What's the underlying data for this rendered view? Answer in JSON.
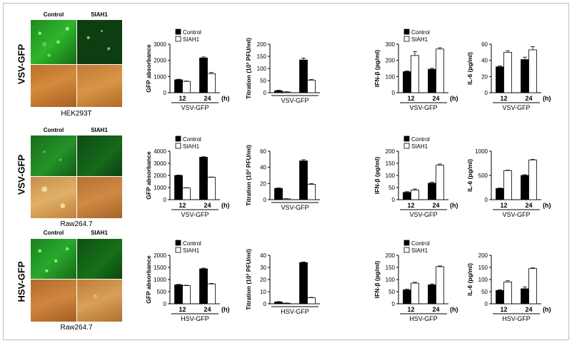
{
  "rows": [
    {
      "virus": "VSV-GFP",
      "cell_line": "HEK293T",
      "micro_labels": [
        "Control",
        "SIAH1"
      ]
    },
    {
      "virus": "VSV-GFP",
      "cell_line": "Raw264.7",
      "micro_labels": [
        "Control",
        "SIAH1"
      ]
    },
    {
      "virus": "HSV-GFP",
      "cell_line": "Raw264.7",
      "micro_labels": [
        "Control",
        "SIAH1"
      ]
    }
  ],
  "colors": {
    "control": "#000000",
    "siah1": "#ffffff",
    "red_accent": "#c0392b",
    "green_fluor": "#36c83c"
  },
  "chart_data": [
    {
      "id": "r1-gfp",
      "type": "bar",
      "legend": [
        "Control",
        "SIAH1"
      ],
      "ylabel": "GFP absorbance",
      "xlabel": "VSV-GFP",
      "categories": [
        "12",
        "24"
      ],
      "unit": "(h)",
      "ylim": [
        0,
        3000
      ],
      "yticks": [
        0,
        1000,
        2000,
        3000
      ],
      "series": [
        {
          "name": "Control",
          "values": [
            800,
            2150
          ],
          "err": [
            30,
            60
          ]
        },
        {
          "name": "SIAH1",
          "values": [
            700,
            1180
          ],
          "err": [
            20,
            70
          ]
        }
      ]
    },
    {
      "id": "r1-tit",
      "type": "bar",
      "legend": [],
      "ylabel": "Titration (10³ PFU/ml)",
      "xlabel": "VSV-GFP",
      "categories": [
        "",
        ""
      ],
      "unit": "",
      "ylim": [
        0,
        200
      ],
      "yticks": [
        0,
        50,
        100,
        150,
        200
      ],
      "series": [
        {
          "name": "Control",
          "values": [
            8,
            135
          ],
          "err": [
            2,
            8
          ]
        },
        {
          "name": "SIAH1",
          "values": [
            3,
            52
          ],
          "err": [
            1,
            3
          ]
        }
      ]
    },
    {
      "id": "r1-ifn",
      "type": "bar",
      "legend": [
        "Control",
        "SIAH1"
      ],
      "ylabel": "IFN-β (pg/ml)",
      "xlabel": "VSV-GFP",
      "categories": [
        "12",
        "24"
      ],
      "unit": "(h)",
      "ylim": [
        0,
        300
      ],
      "yticks": [
        0,
        100,
        200,
        300
      ],
      "series": [
        {
          "name": "Control",
          "values": [
            130,
            145
          ],
          "err": [
            5,
            6
          ]
        },
        {
          "name": "SIAH1",
          "values": [
            230,
            270
          ],
          "err": [
            25,
            8
          ]
        }
      ]
    },
    {
      "id": "r1-il6",
      "type": "bar",
      "legend": [],
      "ylabel": "IL-6 (pg/ml)",
      "xlabel": "VSV-GFP",
      "categories": [
        "12",
        "24"
      ],
      "unit": "(h)",
      "ylim": [
        0,
        60
      ],
      "yticks": [
        0,
        20,
        40,
        60
      ],
      "series": [
        {
          "name": "Control",
          "values": [
            32,
            41
          ],
          "err": [
            1,
            3
          ]
        },
        {
          "name": "SIAH1",
          "values": [
            50,
            53
          ],
          "err": [
            2,
            4
          ]
        }
      ]
    },
    {
      "id": "r2-gfp",
      "type": "bar",
      "legend": [
        "Control",
        "SIAH1"
      ],
      "ylabel": "GFP absorbance",
      "xlabel": "VSV-GFP",
      "categories": [
        "12",
        "24"
      ],
      "unit": "(h)",
      "ylim": [
        0,
        4000
      ],
      "yticks": [
        0,
        1000,
        2000,
        3000,
        4000
      ],
      "series": [
        {
          "name": "Control",
          "values": [
            2000,
            3500
          ],
          "err": [
            30,
            40
          ]
        },
        {
          "name": "SIAH1",
          "values": [
            970,
            1850
          ],
          "err": [
            20,
            20
          ]
        }
      ]
    },
    {
      "id": "r2-tit",
      "type": "bar",
      "legend": [],
      "ylabel": "Titration (10³ PFU/ml)",
      "xlabel": "VSV-GFP",
      "categories": [
        "",
        ""
      ],
      "unit": "",
      "ylim": [
        0,
        60
      ],
      "yticks": [
        0,
        20,
        40,
        60
      ],
      "series": [
        {
          "name": "Control",
          "values": [
            14,
            48
          ],
          "err": [
            0.5,
            1.5
          ]
        },
        {
          "name": "SIAH1",
          "values": [
            1,
            19
          ],
          "err": [
            0.2,
            1
          ]
        }
      ]
    },
    {
      "id": "r2-ifn",
      "type": "bar",
      "legend": [
        "Control",
        "SIAH1"
      ],
      "ylabel": "IFN-β (pg/ml)",
      "xlabel": "VSV-GFP",
      "categories": [
        "12",
        "24"
      ],
      "unit": "(h)",
      "ylim": [
        0,
        200
      ],
      "yticks": [
        0,
        50,
        100,
        150,
        200
      ],
      "series": [
        {
          "name": "Control",
          "values": [
            30,
            68
          ],
          "err": [
            3,
            4
          ]
        },
        {
          "name": "SIAH1",
          "values": [
            40,
            142
          ],
          "err": [
            4,
            5
          ]
        }
      ]
    },
    {
      "id": "r2-il6",
      "type": "bar",
      "legend": [],
      "ylabel": "IL-6 (pg/ml)",
      "xlabel": "VSV-GFP",
      "categories": [
        "12",
        "24"
      ],
      "unit": "(h)",
      "ylim": [
        0,
        1000
      ],
      "yticks": [
        0,
        500,
        1000
      ],
      "series": [
        {
          "name": "Control",
          "values": [
            230,
            500
          ],
          "err": [
            10,
            15
          ]
        },
        {
          "name": "SIAH1",
          "values": [
            600,
            820
          ],
          "err": [
            8,
            10
          ]
        }
      ]
    },
    {
      "id": "r3-gfp",
      "type": "bar",
      "legend": [
        "Control",
        "SIAH1"
      ],
      "ylabel": "GFP absorbance",
      "xlabel": "HSV-GFP",
      "categories": [
        "12",
        "24"
      ],
      "unit": "(h)",
      "ylim": [
        0,
        2000
      ],
      "yticks": [
        0,
        500,
        1000,
        1500,
        2000
      ],
      "series": [
        {
          "name": "Control",
          "values": [
            780,
            1440
          ],
          "err": [
            20,
            30
          ]
        },
        {
          "name": "SIAH1",
          "values": [
            750,
            820
          ],
          "err": [
            15,
            20
          ]
        }
      ]
    },
    {
      "id": "r3-tit",
      "type": "bar",
      "legend": [],
      "ylabel": "Titration (10³ PFU/ml)",
      "xlabel": "HSV-GFP",
      "categories": [
        "",
        ""
      ],
      "unit": "",
      "ylim": [
        0,
        40
      ],
      "yticks": [
        0,
        10,
        20,
        30,
        40
      ],
      "series": [
        {
          "name": "Control",
          "values": [
            1.5,
            34
          ],
          "err": [
            0.3,
            0.5
          ]
        },
        {
          "name": "SIAH1",
          "values": [
            0.5,
            5
          ],
          "err": [
            0.1,
            0.3
          ]
        }
      ]
    },
    {
      "id": "r3-ifn",
      "type": "bar",
      "legend": [
        "Control",
        "SIAH1"
      ],
      "ylabel": "IFN-β (pg/ml)",
      "xlabel": "HSV-GFP",
      "categories": [
        "12",
        "24"
      ],
      "unit": "(h)",
      "ylim": [
        0,
        200
      ],
      "yticks": [
        0,
        50,
        100,
        150,
        200
      ],
      "series": [
        {
          "name": "Control",
          "values": [
            57,
            78
          ],
          "err": [
            3,
            4
          ]
        },
        {
          "name": "SIAH1",
          "values": [
            85,
            153
          ],
          "err": [
            4,
            3
          ]
        }
      ]
    },
    {
      "id": "r3-il6",
      "type": "bar",
      "legend": [],
      "ylabel": "IL-6 (pg/ml)",
      "xlabel": "HSV-GFP",
      "categories": [
        "12",
        "24"
      ],
      "unit": "(h)",
      "ylim": [
        0,
        200
      ],
      "yticks": [
        0,
        50,
        100,
        150,
        200
      ],
      "series": [
        {
          "name": "Control",
          "values": [
            55,
            62
          ],
          "err": [
            3,
            8
          ]
        },
        {
          "name": "SIAH1",
          "values": [
            90,
            145
          ],
          "err": [
            5,
            3
          ]
        }
      ]
    }
  ]
}
